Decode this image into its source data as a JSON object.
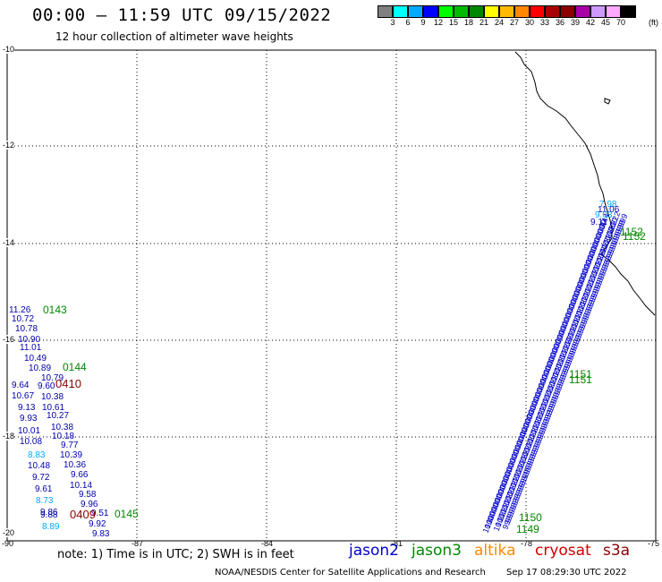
{
  "title": "00:00 – 11:59 UTC 09/15/2022",
  "subtitle": "12 hour collection of altimeter wave heights",
  "colorbar": {
    "labels": [
      "3",
      "6",
      "9",
      "12",
      "15",
      "18",
      "21",
      "24",
      "27",
      "30",
      "33",
      "36",
      "39",
      "42",
      "45",
      "70"
    ],
    "unit": "(ft)",
    "colors": [
      "#808080",
      "#00ffff",
      "#00aaff",
      "#0000ff",
      "#00ff00",
      "#00bb00",
      "#008800",
      "#ffff00",
      "#ffbb00",
      "#ff8800",
      "#ff0000",
      "#aa0000",
      "#880000",
      "#aa00aa",
      "#cc99ff",
      "#ffaaff",
      "#000000"
    ]
  },
  "axes": {
    "lat_labels": [
      "-10",
      "-12",
      "-14",
      "-16",
      "-18",
      "-20"
    ],
    "lon_labels": [
      "-90",
      "-87",
      "-84",
      "-81",
      "-78",
      "-75"
    ]
  },
  "note": "note: 1) Time is in UTC; 2) SWH is in feet",
  "satellites": [
    {
      "name": "jason2",
      "color": "#0000cc"
    },
    {
      "name": "jason3",
      "color": "#008800"
    },
    {
      "name": "altika",
      "color": "#ff8800"
    },
    {
      "name": "cryosat",
      "color": "#cc0000"
    },
    {
      "name": "s3a",
      "color": "#880000"
    }
  ],
  "footer": "NOAA/NESDIS Center for Satellite Applications and Research",
  "timestamp": "Sep 17 08:29:30 UTC 2022",
  "track_left": {
    "values": [
      {
        "v": "11.26",
        "c": "#0000aa"
      },
      {
        "v": "10.72",
        "c": "#0000aa"
      },
      {
        "v": "10.78",
        "c": "#0000aa"
      },
      {
        "v": "10.90",
        "c": "#0000aa"
      },
      {
        "v": "11.01",
        "c": "#0000aa"
      },
      {
        "v": "10.49",
        "c": "#0000aa"
      },
      {
        "v": "10.89",
        "c": "#0000aa"
      },
      {
        "v": "10.79",
        "c": "#0000aa"
      },
      {
        "v": "9.64",
        "c": "#0000aa"
      },
      {
        "v": "9.60",
        "c": "#0000aa"
      },
      {
        "v": "10.67",
        "c": "#0000aa"
      },
      {
        "v": "10.38",
        "c": "#0000aa"
      },
      {
        "v": "9.13",
        "c": "#0000aa"
      },
      {
        "v": "10.61",
        "c": "#0000aa"
      },
      {
        "v": "9.93",
        "c": "#0000aa"
      },
      {
        "v": "10.27",
        "c": "#0000aa"
      },
      {
        "v": "10.38",
        "c": "#0000aa"
      },
      {
        "v": "10.01",
        "c": "#0000aa"
      },
      {
        "v": "10.18",
        "c": "#0000aa"
      },
      {
        "v": "10.08",
        "c": "#0000aa"
      },
      {
        "v": "9.77",
        "c": "#0000aa"
      },
      {
        "v": "8.83",
        "c": "#00aaff"
      },
      {
        "v": "10.39",
        "c": "#0000aa"
      },
      {
        "v": "10.48",
        "c": "#0000aa"
      },
      {
        "v": "10.36",
        "c": "#0000aa"
      },
      {
        "v": "9.72",
        "c": "#0000aa"
      },
      {
        "v": "9.66",
        "c": "#0000aa"
      },
      {
        "v": "9.61",
        "c": "#0000aa"
      },
      {
        "v": "10.14",
        "c": "#0000aa"
      },
      {
        "v": "9.58",
        "c": "#0000aa"
      },
      {
        "v": "8.73",
        "c": "#00aaff"
      },
      {
        "v": "9.96",
        "c": "#0000aa"
      },
      {
        "v": "9.86",
        "c": "#0000aa"
      },
      {
        "v": "9.88",
        "c": "#0000aa"
      },
      {
        "v": "9.51",
        "c": "#0000aa"
      },
      {
        "v": "9.92",
        "c": "#0000aa"
      },
      {
        "v": "8.89",
        "c": "#00aaff"
      },
      {
        "v": "9.83",
        "c": "#0000aa"
      }
    ],
    "time_labels": [
      {
        "t": "0143",
        "c": "#008800"
      },
      {
        "t": "0144",
        "c": "#008800"
      },
      {
        "t": "0410",
        "c": "#880000"
      },
      {
        "t": "0409",
        "c": "#880000"
      },
      {
        "t": "0145",
        "c": "#008800"
      }
    ]
  },
  "track_right": {
    "top_values": [
      {
        "v": "7.98",
        "c": "#00aaff"
      },
      {
        "v": "11.06",
        "c": "#0000aa"
      },
      {
        "v": "9.03",
        "c": "#00aaff"
      },
      {
        "v": "9.11",
        "c": "#0000aa"
      }
    ],
    "time_labels": [
      {
        "t": "1152",
        "c": "#008800"
      },
      {
        "t": "1152",
        "c": "#008800"
      },
      {
        "t": "1151",
        "c": "#008800"
      },
      {
        "t": "1151",
        "c": "#008800"
      },
      {
        "t": "1150",
        "c": "#008800"
      },
      {
        "t": "1149",
        "c": "#008800"
      }
    ]
  }
}
